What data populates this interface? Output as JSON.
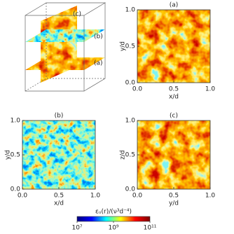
{
  "chart_data": [
    {
      "type": "heatmap",
      "title": "(a)",
      "xlabel": "x/d",
      "ylabel": "y/d",
      "xlim": [
        0,
        1
      ],
      "ylim": [
        0,
        1
      ],
      "xticks": [
        {
          "value": 0,
          "label": "0.0"
        },
        0.5,
        {
          "value": 1,
          "label": "1.0"
        }
      ],
      "yticks": [
        {
          "value": 0,
          "label": "0.0"
        },
        0.5,
        {
          "value": 1,
          "label": "1.0"
        }
      ]
    },
    {
      "type": "heatmap",
      "title": "(b)",
      "xlabel": "x/d",
      "ylabel": "y/d",
      "xlim": [
        0,
        1
      ],
      "ylim": [
        0,
        1
      ],
      "xticks": [
        {
          "value": 0,
          "label": "0.0"
        },
        0.5,
        {
          "value": 1,
          "label": "1.0"
        }
      ],
      "yticks": [
        {
          "value": 0,
          "label": "0.0"
        },
        0.5,
        {
          "value": 1,
          "label": "1.0"
        }
      ]
    },
    {
      "type": "heatmap",
      "title": "(c)",
      "xlabel": "y/d",
      "ylabel": "z/d",
      "xlim": [
        0,
        1
      ],
      "ylim": [
        0,
        1
      ],
      "xticks": [
        {
          "value": 0,
          "label": "0.0"
        },
        0.5,
        {
          "value": 1,
          "label": "1.0"
        }
      ],
      "yticks": [
        {
          "value": 0,
          "label": "0.0"
        },
        0.5,
        {
          "value": 1,
          "label": "1.0"
        }
      ]
    }
  ],
  "cube": {
    "labels": [
      "(c)",
      "(b)",
      "(a)"
    ]
  },
  "colorbar": {
    "label": "εᵤ(r)/(ν³d⁻⁴)",
    "log": true,
    "clim": [
      10000000,
      100000000000
    ],
    "ticks": [
      {
        "value": 10000000,
        "label": "10⁷"
      },
      {
        "value": 1000000000,
        "label": "10⁹"
      },
      {
        "value": 100000000000,
        "label": "10¹¹"
      }
    ],
    "colors": [
      "#00007f",
      "#0000ff",
      "#00ffff",
      "#ffff00",
      "#ff0000",
      "#7f0000"
    ]
  }
}
